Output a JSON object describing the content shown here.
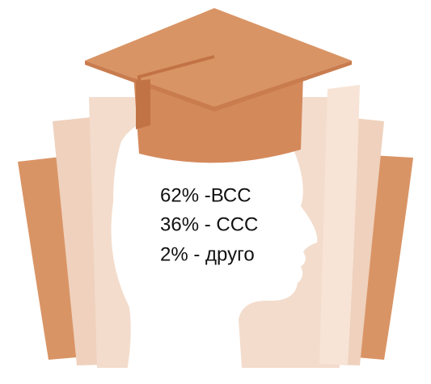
{
  "lines": [
    "62% -ВСС",
    "36% - ССС",
    "2% - друго"
  ]
}
